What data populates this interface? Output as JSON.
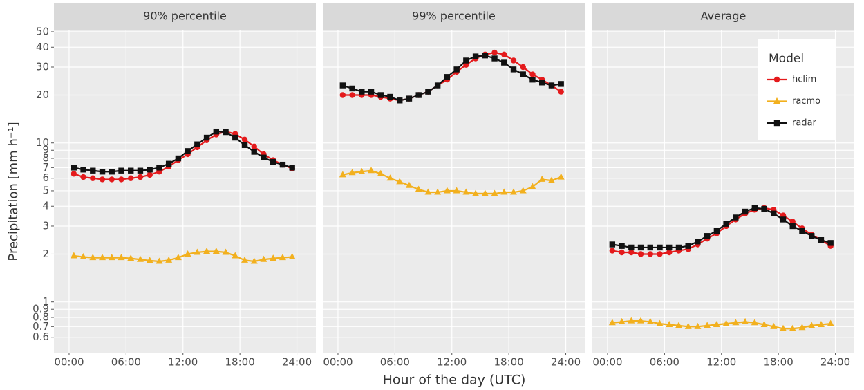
{
  "chart_data": {
    "type": "line",
    "ylabel": "Precipitation [mm h⁻¹]",
    "xlabel": "Hour of the day (UTC)",
    "legend_title": "Model",
    "legend": "top-right",
    "log_y": true,
    "grid": true,
    "ylim": [
      0.48,
      51
    ],
    "yticks": [
      0.6,
      0.7,
      0.8,
      0.9,
      1,
      2,
      3,
      4,
      5,
      6,
      7,
      8,
      9,
      10,
      20,
      30,
      40,
      50
    ],
    "xlim": [
      -1.6,
      26.0
    ],
    "xticks": [
      {
        "value": 0,
        "label": "00:00"
      },
      {
        "value": 6,
        "label": "06:00"
      },
      {
        "value": 12,
        "label": "12:00"
      },
      {
        "value": 18,
        "label": "18:00"
      },
      {
        "value": 24,
        "label": "24:00"
      }
    ],
    "x": [
      0.5,
      1.5,
      2.5,
      3.5,
      4.5,
      5.5,
      6.5,
      7.5,
      8.5,
      9.5,
      10.5,
      11.5,
      12.5,
      13.5,
      14.5,
      15.5,
      16.5,
      17.5,
      18.5,
      19.5,
      20.5,
      21.5,
      22.5,
      23.5
    ],
    "series": [
      {
        "name": "hclim",
        "color": "#e41a1c",
        "marker": "circle"
      },
      {
        "name": "racmo",
        "color": "#f2b01e",
        "marker": "triangle"
      },
      {
        "name": "radar",
        "color": "#111111",
        "marker": "square"
      }
    ],
    "facets": [
      {
        "title": "90% percentile",
        "series": [
          {
            "values": [
              6.4,
              6.1,
              6.0,
              5.9,
              5.9,
              5.9,
              6.0,
              6.1,
              6.3,
              6.6,
              7.1,
              7.8,
              8.5,
              9.4,
              10.4,
              11.3,
              11.8,
              11.4,
              10.5,
              9.5,
              8.5,
              7.8,
              7.3,
              6.9
            ]
          },
          {
            "values": [
              1.95,
              1.92,
              1.9,
              1.9,
              1.9,
              1.9,
              1.88,
              1.85,
              1.82,
              1.8,
              1.83,
              1.9,
              2.0,
              2.05,
              2.08,
              2.08,
              2.05,
              1.95,
              1.83,
              1.8,
              1.85,
              1.88,
              1.9,
              1.92
            ]
          },
          {
            "values": [
              7.0,
              6.8,
              6.7,
              6.6,
              6.6,
              6.7,
              6.7,
              6.7,
              6.8,
              7.0,
              7.4,
              8.0,
              8.9,
              9.8,
              10.8,
              11.8,
              11.7,
              10.8,
              9.7,
              8.8,
              8.1,
              7.6,
              7.3,
              7.0
            ]
          }
        ]
      },
      {
        "title": "99% percentile",
        "series": [
          {
            "values": [
              20,
              20,
              20,
              20,
              19.5,
              19,
              18.5,
              19,
              20,
              21,
              23,
              25,
              28,
              31,
              34,
              36,
              37,
              36,
              33,
              30,
              27,
              25,
              23,
              21
            ]
          },
          {
            "values": [
              6.3,
              6.5,
              6.6,
              6.7,
              6.4,
              6.0,
              5.7,
              5.4,
              5.1,
              4.9,
              4.9,
              5.0,
              5.0,
              4.9,
              4.8,
              4.8,
              4.8,
              4.9,
              4.9,
              5.0,
              5.3,
              5.9,
              5.8,
              6.1
            ]
          },
          {
            "values": [
              23,
              22,
              21,
              21,
              20,
              19.5,
              18.5,
              19,
              20,
              21,
              23,
              26,
              29,
              33,
              35,
              35.5,
              34,
              32,
              29,
              27,
              25,
              24,
              23,
              23.5
            ]
          }
        ]
      },
      {
        "title": "Average",
        "series": [
          {
            "values": [
              2.1,
              2.05,
              2.05,
              2.0,
              2.0,
              2.0,
              2.05,
              2.1,
              2.15,
              2.3,
              2.5,
              2.7,
              3.0,
              3.3,
              3.6,
              3.8,
              3.9,
              3.8,
              3.5,
              3.2,
              2.9,
              2.65,
              2.45,
              2.25
            ]
          },
          {
            "values": [
              0.74,
              0.75,
              0.76,
              0.76,
              0.75,
              0.73,
              0.72,
              0.71,
              0.7,
              0.7,
              0.71,
              0.72,
              0.73,
              0.74,
              0.75,
              0.74,
              0.72,
              0.7,
              0.68,
              0.68,
              0.69,
              0.71,
              0.72,
              0.73
            ]
          },
          {
            "values": [
              2.3,
              2.25,
              2.2,
              2.2,
              2.2,
              2.2,
              2.2,
              2.2,
              2.25,
              2.4,
              2.6,
              2.8,
              3.1,
              3.4,
              3.7,
              3.9,
              3.85,
              3.6,
              3.3,
              3.0,
              2.8,
              2.6,
              2.45,
              2.35
            ]
          }
        ]
      }
    ]
  }
}
